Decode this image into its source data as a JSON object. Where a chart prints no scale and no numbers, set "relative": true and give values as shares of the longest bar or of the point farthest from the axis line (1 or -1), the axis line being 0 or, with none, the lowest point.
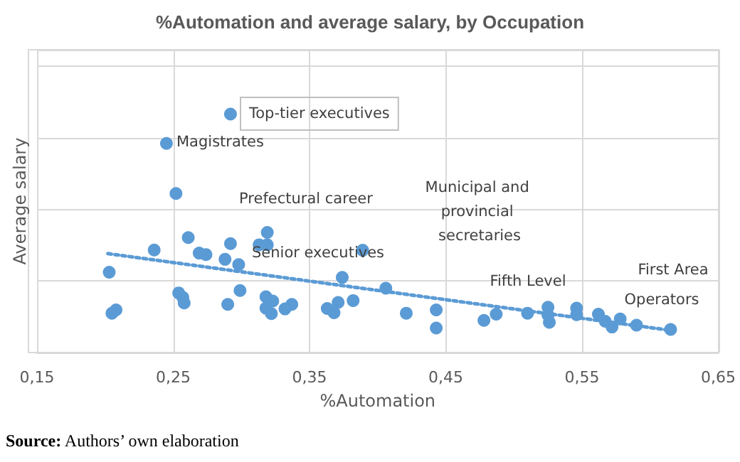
{
  "chart_data": {
    "type": "scatter",
    "title": "%Automation and average salary, by Occupation",
    "xlabel": "%Automation",
    "ylabel": "Average salary",
    "relative": true,
    "grid": true,
    "marker": "circle",
    "xlim": [
      0.15,
      0.65
    ],
    "xticks": [
      {
        "value": 0.15,
        "label": "0,15"
      },
      {
        "value": 0.25,
        "label": "0,25"
      },
      {
        "value": 0.35,
        "label": "0,35"
      },
      {
        "value": 0.45,
        "label": "0,45"
      },
      {
        "value": 0.55,
        "label": "0,55"
      },
      {
        "value": 0.65,
        "label": "0,65"
      }
    ],
    "series": [
      {
        "color": "#5b9bd5",
        "x": [
          0.292,
          0.245,
          0.252,
          0.319,
          0.261,
          0.292,
          0.313,
          0.319,
          0.236,
          0.269,
          0.274,
          0.288,
          0.298,
          0.203,
          0.374,
          0.389,
          0.406,
          0.254,
          0.257,
          0.258,
          0.299,
          0.29,
          0.318,
          0.323,
          0.318,
          0.322,
          0.332,
          0.337,
          0.363,
          0.368,
          0.371,
          0.382,
          0.205,
          0.208,
          0.421,
          0.443,
          0.443,
          0.478,
          0.487,
          0.51,
          0.525,
          0.525,
          0.526,
          0.546,
          0.546,
          0.562,
          0.567,
          0.572,
          0.578,
          0.59,
          0.615
        ],
        "values": [
          1.0,
          0.877,
          0.667,
          0.504,
          0.482,
          0.457,
          0.452,
          0.452,
          0.43,
          0.417,
          0.411,
          0.391,
          0.369,
          0.337,
          0.315,
          0.429,
          0.27,
          0.25,
          0.232,
          0.208,
          0.26,
          0.202,
          0.234,
          0.216,
          0.186,
          0.163,
          0.183,
          0.202,
          0.185,
          0.167,
          0.21,
          0.218,
          0.165,
          0.179,
          0.165,
          0.179,
          0.103,
          0.135,
          0.161,
          0.165,
          0.19,
          0.157,
          0.127,
          0.186,
          0.159,
          0.161,
          0.131,
          0.107,
          0.141,
          0.115,
          0.097
        ]
      },
      {
        "type": "line",
        "color": "#5b9bd5",
        "line_style": "dotted",
        "marker": "none",
        "x": [
          0.202,
          0.615
        ],
        "values": [
          0.415,
          0.093
        ]
      }
    ],
    "annotations": [
      "Top-tier executives",
      "Magistrates",
      "Prefectural career",
      "Senior executives",
      "Municipal and provincial secretaries",
      "Fifth Level",
      "First Area",
      "Operators",
      "Source: Authors’ own elaboration"
    ]
  }
}
